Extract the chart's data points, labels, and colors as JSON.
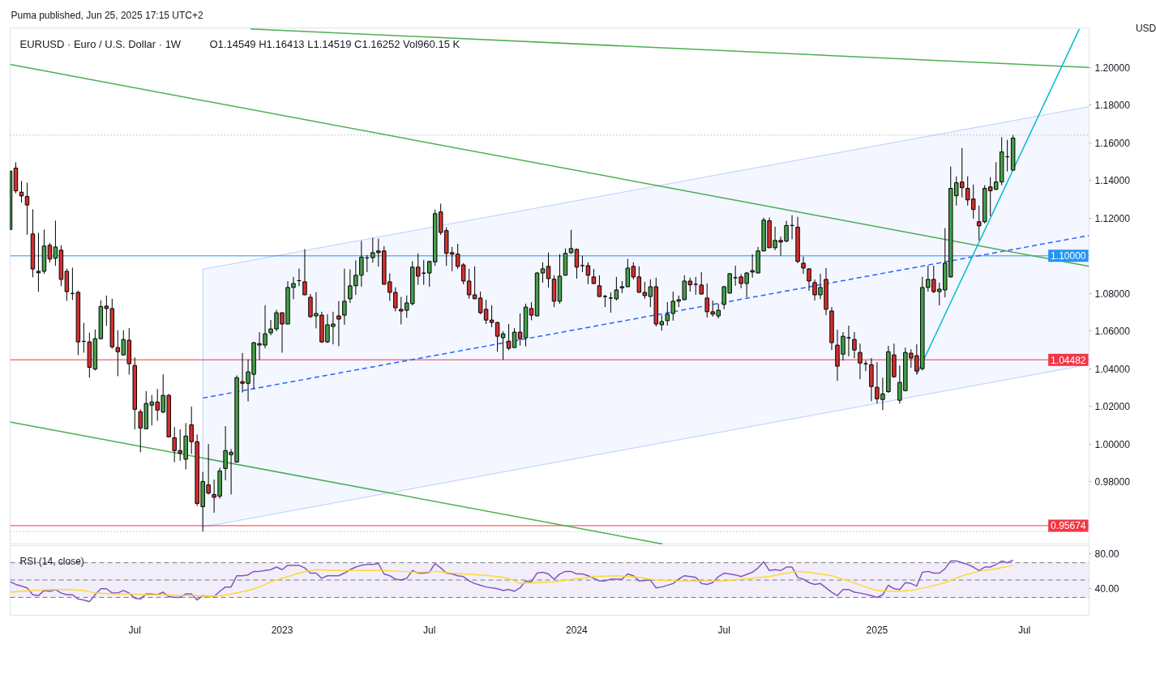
{
  "chart_data": [
    {
      "type": "candlestick",
      "title": "EURUSD · Euro / U.S. Dollar · 1W",
      "subtitle": "O1.14549 H1.16413 L1.14519 C1.16252 Vol960.15 K",
      "ylabel": "USD",
      "annotations": [
        "Puma published, Jun 25, 2025 17:15 UTC+2"
      ],
      "x": [
        "2022-01-31",
        "2022-02-07",
        "2022-02-14",
        "2022-02-21",
        "2022-02-28",
        "2022-03-07",
        "2022-03-14",
        "2022-03-21",
        "2022-03-28",
        "2022-04-04",
        "2022-04-11",
        "2022-04-18",
        "2022-04-25",
        "2022-05-02",
        "2022-05-09",
        "2022-05-16",
        "2022-05-23",
        "2022-05-30",
        "2022-06-06",
        "2022-06-13",
        "2022-06-20",
        "2022-06-27",
        "2022-07-04",
        "2022-07-11",
        "2022-07-18",
        "2022-07-25",
        "2022-08-01",
        "2022-08-08",
        "2022-08-15",
        "2022-08-22",
        "2022-08-29",
        "2022-09-05",
        "2022-09-12",
        "2022-09-19",
        "2022-09-26",
        "2022-10-03",
        "2022-10-10",
        "2022-10-17",
        "2022-10-24",
        "2022-10-31",
        "2022-11-07",
        "2022-11-14",
        "2022-11-21",
        "2022-11-28",
        "2022-12-05",
        "2022-12-12",
        "2022-12-19",
        "2022-12-26",
        "2023-01-02",
        "2023-01-09",
        "2023-01-16",
        "2023-01-23",
        "2023-01-30",
        "2023-02-06",
        "2023-02-13",
        "2023-02-20",
        "2023-02-27",
        "2023-03-06",
        "2023-03-13",
        "2023-03-20",
        "2023-03-27",
        "2023-04-03",
        "2023-04-10",
        "2023-04-17",
        "2023-04-24",
        "2023-05-01",
        "2023-05-08",
        "2023-05-15",
        "2023-05-22",
        "2023-05-29",
        "2023-06-05",
        "2023-06-12",
        "2023-06-19",
        "2023-06-26",
        "2023-07-03",
        "2023-07-10",
        "2023-07-17",
        "2023-07-24",
        "2023-07-31",
        "2023-08-07",
        "2023-08-14",
        "2023-08-21",
        "2023-08-28",
        "2023-09-04",
        "2023-09-11",
        "2023-09-18",
        "2023-09-25",
        "2023-10-02",
        "2023-10-09",
        "2023-10-16",
        "2023-10-23",
        "2023-10-30",
        "2023-11-06",
        "2023-11-13",
        "2023-11-20",
        "2023-11-27",
        "2023-12-04",
        "2023-12-11",
        "2023-12-18",
        "2023-12-25",
        "2024-01-01",
        "2024-01-08",
        "2024-01-15",
        "2024-01-22",
        "2024-01-29",
        "2024-02-05",
        "2024-02-12",
        "2024-02-19",
        "2024-02-26",
        "2024-03-04",
        "2024-03-11",
        "2024-03-18",
        "2024-03-25",
        "2024-04-01",
        "2024-04-08",
        "2024-04-15",
        "2024-04-22",
        "2024-04-29",
        "2024-05-06",
        "2024-05-13",
        "2024-05-20",
        "2024-05-27",
        "2024-06-03",
        "2024-06-10",
        "2024-06-17",
        "2024-06-24",
        "2024-07-01",
        "2024-07-08",
        "2024-07-15",
        "2024-07-22",
        "2024-07-29",
        "2024-08-05",
        "2024-08-12",
        "2024-08-19",
        "2024-08-26",
        "2024-09-02",
        "2024-09-09",
        "2024-09-16",
        "2024-09-23",
        "2024-09-30",
        "2024-10-07",
        "2024-10-14",
        "2024-10-21",
        "2024-10-28",
        "2024-11-04",
        "2024-11-11",
        "2024-11-18",
        "2024-11-25",
        "2024-12-02",
        "2024-12-09",
        "2024-12-16",
        "2024-12-23",
        "2024-12-30",
        "2025-01-06",
        "2025-01-13",
        "2025-01-20",
        "2025-01-27",
        "2025-02-03",
        "2025-02-10",
        "2025-02-17",
        "2025-02-24",
        "2025-03-03",
        "2025-03-10",
        "2025-03-17",
        "2025-03-24",
        "2025-03-31",
        "2025-04-07",
        "2025-04-14",
        "2025-04-21",
        "2025-04-28",
        "2025-05-05",
        "2025-05-12",
        "2025-05-19",
        "2025-05-26",
        "2025-06-02",
        "2025-06-09",
        "2025-06-16",
        "2025-06-23"
      ],
      "ohlc": [
        [
          1.114,
          1.145,
          1.114,
          1.145
        ],
        [
          1.1466,
          1.1497,
          1.1332,
          1.1345
        ],
        [
          1.1338,
          1.1398,
          1.1283,
          1.1318
        ],
        [
          1.1315,
          1.1388,
          1.1112,
          1.127
        ],
        [
          1.1116,
          1.1247,
          1.0886,
          1.093
        ],
        [
          1.0918,
          1.1122,
          1.0809,
          1.091
        ],
        [
          1.0918,
          1.1139,
          1.0904,
          1.1052
        ],
        [
          1.1056,
          1.1069,
          1.0964,
          1.0983
        ],
        [
          1.0987,
          1.1187,
          1.0947,
          1.1047
        ],
        [
          1.103,
          1.1056,
          1.0839,
          1.0875
        ],
        [
          1.0918,
          1.0932,
          1.0761,
          1.081
        ],
        [
          1.08,
          1.0937,
          1.0766,
          1.08
        ],
        [
          1.0806,
          1.0815,
          1.0473,
          1.0543
        ],
        [
          1.0546,
          1.0644,
          1.0486,
          1.0546
        ],
        [
          1.0543,
          1.0592,
          1.0353,
          1.0408
        ],
        [
          1.0399,
          1.0609,
          1.0391,
          1.056
        ],
        [
          1.056,
          1.0764,
          1.0558,
          1.0731
        ],
        [
          1.0733,
          1.0789,
          1.0628,
          1.072
        ],
        [
          1.072,
          1.0772,
          1.0507,
          1.0517
        ],
        [
          1.0513,
          1.0605,
          1.0361,
          1.0491
        ],
        [
          1.0474,
          1.0605,
          1.0472,
          1.0556
        ],
        [
          1.0552,
          1.0616,
          1.0369,
          1.0427
        ],
        [
          1.0418,
          1.0461,
          1.0078,
          1.0185
        ],
        [
          1.0172,
          1.0185,
          0.9957,
          1.0086
        ],
        [
          1.0082,
          1.0282,
          1.008,
          1.0216
        ],
        [
          1.0207,
          1.0261,
          1.0099,
          1.0224
        ],
        [
          1.0224,
          1.0293,
          1.0124,
          1.0181
        ],
        [
          1.0171,
          1.0371,
          1.0164,
          1.0259
        ],
        [
          1.0259,
          1.0267,
          1.0037,
          1.0039
        ],
        [
          1.0034,
          1.0091,
          0.9904,
          0.9966
        ],
        [
          0.9966,
          1.0079,
          0.9912,
          0.9953
        ],
        [
          0.992,
          1.0112,
          0.9866,
          1.0043
        ],
        [
          1.0103,
          1.02,
          0.9948,
          1.0013
        ],
        [
          1.0013,
          1.0052,
          0.9672,
          0.9685
        ],
        [
          0.9668,
          0.9853,
          0.9536,
          0.9802
        ],
        [
          0.9784,
          1.0001,
          0.9733,
          0.974
        ],
        [
          0.9733,
          0.9812,
          0.9636,
          0.9718
        ],
        [
          0.9724,
          0.9875,
          0.9711,
          0.9858
        ],
        [
          0.9871,
          1.0096,
          0.9809,
          0.9966
        ],
        [
          0.9944,
          0.9974,
          0.9733,
          0.9957
        ],
        [
          0.9905,
          1.0365,
          0.9903,
          1.0353
        ],
        [
          1.0332,
          1.0484,
          1.0274,
          1.0323
        ],
        [
          1.0323,
          1.045,
          1.0227,
          1.0384
        ],
        [
          1.0371,
          1.0543,
          1.0293,
          1.0539
        ],
        [
          1.0526,
          1.0595,
          1.0448,
          1.0534
        ],
        [
          1.0526,
          1.0738,
          1.0509,
          1.0586
        ],
        [
          1.0591,
          1.0659,
          1.0578,
          1.0612
        ],
        [
          1.0612,
          1.0713,
          1.0599,
          1.0698
        ],
        [
          1.0698,
          1.07,
          1.0486,
          1.0638
        ],
        [
          1.0638,
          1.0866,
          1.0636,
          1.0832
        ],
        [
          1.0832,
          1.0888,
          1.077,
          1.0853
        ],
        [
          1.0868,
          1.0932,
          1.0839,
          1.0868
        ],
        [
          1.0862,
          1.1036,
          1.0791,
          1.0793
        ],
        [
          1.078,
          1.0797,
          1.0671,
          1.0677
        ],
        [
          1.0681,
          1.0807,
          1.0615,
          1.0694
        ],
        [
          1.0685,
          1.0703,
          1.0537,
          1.0543
        ],
        [
          1.0543,
          1.069,
          1.0537,
          1.0634
        ],
        [
          1.0625,
          1.0703,
          1.053,
          1.0638
        ],
        [
          1.0681,
          1.076,
          1.052,
          1.0664
        ],
        [
          1.0685,
          1.0932,
          1.0634,
          1.0759
        ],
        [
          1.0772,
          1.0928,
          1.075,
          1.0841
        ],
        [
          1.0841,
          1.0976,
          1.0793,
          1.0897
        ],
        [
          1.0897,
          1.1079,
          1.0836,
          1.0993
        ],
        [
          1.0989,
          1.1004,
          1.0914,
          1.0989
        ],
        [
          1.099,
          1.1096,
          1.0964,
          1.1017
        ],
        [
          1.1026,
          1.1091,
          1.0943,
          1.1017
        ],
        [
          1.1026,
          1.1052,
          1.0847,
          1.0849
        ],
        [
          1.0862,
          1.0907,
          1.0761,
          1.0806
        ],
        [
          1.0806,
          1.0833,
          1.0705,
          1.0724
        ],
        [
          1.0716,
          1.0782,
          1.0636,
          1.0707
        ],
        [
          1.0711,
          1.079,
          1.0671,
          1.075
        ],
        [
          1.0746,
          1.0971,
          1.0737,
          1.094
        ],
        [
          1.094,
          1.1013,
          1.0846,
          1.0892
        ],
        [
          1.0908,
          1.0978,
          1.0846,
          1.0908
        ],
        [
          1.0909,
          1.0974,
          1.0836,
          1.097
        ],
        [
          1.0968,
          1.1246,
          1.0947,
          1.1224
        ],
        [
          1.1233,
          1.1277,
          1.1111,
          1.1124
        ],
        [
          1.1134,
          1.1151,
          1.0947,
          1.1013
        ],
        [
          1.1017,
          1.1047,
          1.0918,
          1.1009
        ],
        [
          1.1009,
          1.1064,
          1.0931,
          1.0944
        ],
        [
          1.0952,
          1.0961,
          1.0849,
          1.0866
        ],
        [
          1.0866,
          1.0931,
          1.0772,
          1.0793
        ],
        [
          1.0793,
          1.0944,
          1.077,
          1.0772
        ],
        [
          1.0776,
          1.081,
          1.069,
          1.0698
        ],
        [
          1.0716,
          1.0767,
          1.0638,
          1.0659
        ],
        [
          1.0659,
          1.0738,
          1.0621,
          1.0646
        ],
        [
          1.0646,
          1.0651,
          1.0491,
          1.0573
        ],
        [
          1.0565,
          1.0599,
          1.0448,
          1.0586
        ],
        [
          1.0547,
          1.0638,
          1.0499,
          1.0509
        ],
        [
          1.0513,
          1.0616,
          1.0511,
          1.0595
        ],
        [
          1.0595,
          1.0694,
          1.0523,
          1.056
        ],
        [
          1.0565,
          1.0746,
          1.0519,
          1.0728
        ],
        [
          1.072,
          1.0754,
          1.0658,
          1.0685
        ],
        [
          1.0681,
          1.0914,
          1.0679,
          1.0909
        ],
        [
          1.0909,
          1.0966,
          1.0858,
          1.0931
        ],
        [
          1.0944,
          1.1017,
          1.0832,
          1.0879
        ],
        [
          1.0876,
          1.0897,
          1.0728,
          1.0759
        ],
        [
          1.0759,
          1.1009,
          1.0746,
          1.0892
        ],
        [
          1.0897,
          1.1039,
          1.0895,
          1.1013
        ],
        [
          1.1017,
          1.1138,
          1.1009,
          1.1039
        ],
        [
          1.1034,
          1.1039,
          1.0879,
          1.094
        ],
        [
          1.0948,
          1.1,
          1.0914,
          1.0948
        ],
        [
          1.0948,
          1.0966,
          1.0849,
          1.0897
        ],
        [
          1.0888,
          1.0931,
          1.0849,
          1.0853
        ],
        [
          1.0841,
          1.0897,
          1.0782,
          1.0784
        ],
        [
          1.0784,
          1.0793,
          1.0728,
          1.0784
        ],
        [
          1.0776,
          1.0806,
          1.0698,
          1.0776
        ],
        [
          1.0772,
          1.0888,
          1.0763,
          1.0819
        ],
        [
          1.083,
          1.0866,
          1.0802,
          1.0836
        ],
        [
          1.0836,
          1.0984,
          1.0834,
          1.0935
        ],
        [
          1.0944,
          1.0966,
          1.0875,
          1.0888
        ],
        [
          1.0888,
          1.0944,
          1.0804,
          1.0806
        ],
        [
          1.0806,
          1.0862,
          1.0772,
          1.0789
        ],
        [
          1.0784,
          1.0875,
          1.0728,
          1.0836
        ],
        [
          1.0836,
          1.0884,
          1.0625,
          1.0638
        ],
        [
          1.0634,
          1.0685,
          1.0603,
          1.0651
        ],
        [
          1.0656,
          1.0754,
          1.063,
          1.069
        ],
        [
          1.0694,
          1.081,
          1.0656,
          1.0759
        ],
        [
          1.0759,
          1.0789,
          1.0728,
          1.0767
        ],
        [
          1.0767,
          1.0897,
          1.0765,
          1.0866
        ],
        [
          1.0866,
          1.0884,
          1.081,
          1.0846
        ],
        [
          1.0849,
          1.0888,
          1.0793,
          1.0849
        ],
        [
          1.0845,
          1.0914,
          1.0795,
          1.0797
        ],
        [
          1.0776,
          1.0853,
          1.0672,
          1.0703
        ],
        [
          1.0703,
          1.0763,
          1.0677,
          1.069
        ],
        [
          1.0681,
          1.0746,
          1.0668,
          1.0711
        ],
        [
          1.0742,
          1.0841,
          1.0716,
          1.0836
        ],
        [
          1.0802,
          1.0909,
          1.08,
          1.0905
        ],
        [
          1.0884,
          1.0948,
          1.0841,
          1.0884
        ],
        [
          1.0888,
          1.0902,
          1.0828,
          1.0853
        ],
        [
          1.0853,
          1.0914,
          1.078,
          1.0909
        ],
        [
          1.0922,
          1.1009,
          1.0884,
          1.0914
        ],
        [
          1.0909,
          1.1047,
          1.0907,
          1.1026
        ],
        [
          1.1026,
          1.1203,
          1.1024,
          1.119
        ],
        [
          1.1186,
          1.1203,
          1.1041,
          1.1043
        ],
        [
          1.1043,
          1.1155,
          1.103,
          1.1082
        ],
        [
          1.1082,
          1.1103,
          1.1,
          1.1073
        ],
        [
          1.1078,
          1.1186,
          1.1073,
          1.1161
        ],
        [
          1.1161,
          1.1216,
          1.1088,
          1.1161
        ],
        [
          1.1152,
          1.1207,
          1.0961,
          1.097
        ],
        [
          1.0961,
          1.0996,
          1.0905,
          1.0935
        ],
        [
          1.0931,
          1.0935,
          1.0815,
          1.0866
        ],
        [
          1.0858,
          1.0875,
          1.0763,
          1.0793
        ],
        [
          1.0793,
          1.0905,
          1.077,
          1.0832
        ],
        [
          1.0875,
          1.0935,
          1.0685,
          1.0716
        ],
        [
          1.0707,
          1.0728,
          1.05,
          1.0539
        ],
        [
          1.0526,
          1.0608,
          1.0336,
          1.0414
        ],
        [
          1.0478,
          1.0595,
          1.0444,
          1.0573
        ],
        [
          1.0565,
          1.0629,
          1.0466,
          1.0565
        ],
        [
          1.0556,
          1.0595,
          1.0457,
          1.05
        ],
        [
          1.0487,
          1.0534,
          1.0345,
          1.0431
        ],
        [
          1.0427,
          1.0444,
          1.0388,
          1.0427
        ],
        [
          1.0422,
          1.0457,
          1.0228,
          1.0306
        ],
        [
          1.0302,
          1.0435,
          1.0216,
          1.0241
        ],
        [
          1.0237,
          1.0353,
          1.0181,
          1.0267
        ],
        [
          1.0279,
          1.0522,
          1.0272,
          1.0491
        ],
        [
          1.0474,
          1.0534,
          1.0353,
          1.0358
        ],
        [
          1.0233,
          1.0418,
          1.0216,
          1.0328
        ],
        [
          1.0284,
          1.0513,
          1.0282,
          1.0487
        ],
        [
          1.0483,
          1.0504,
          1.0405,
          1.0457
        ],
        [
          1.047,
          1.053,
          1.0371,
          1.0388
        ],
        [
          1.0401,
          1.0888,
          1.0392,
          1.0832
        ],
        [
          1.0832,
          1.0948,
          1.081,
          1.0875
        ],
        [
          1.0875,
          1.0948,
          1.0802,
          1.081
        ],
        [
          1.081,
          1.0858,
          1.0737,
          1.0823
        ],
        [
          1.0819,
          1.1147,
          1.078,
          1.0961
        ],
        [
          1.0888,
          1.1474,
          1.0884,
          1.1358
        ],
        [
          1.1319,
          1.1422,
          1.1267,
          1.1388
        ],
        [
          1.1392,
          1.1573,
          1.131,
          1.1362
        ],
        [
          1.1358,
          1.1422,
          1.1267,
          1.1297
        ],
        [
          1.1302,
          1.1379,
          1.1198,
          1.1246
        ],
        [
          1.1181,
          1.1267,
          1.1082,
          1.1159
        ],
        [
          1.1181,
          1.1375,
          1.1172,
          1.1358
        ],
        [
          1.1366,
          1.1418,
          1.1211,
          1.1345
        ],
        [
          1.1353,
          1.1497,
          1.1349,
          1.1392
        ],
        [
          1.1392,
          1.1629,
          1.1375,
          1.1552
        ],
        [
          1.1526,
          1.1616,
          1.1448,
          1.1526
        ],
        [
          1.14549,
          1.16413,
          1.14519,
          1.16252
        ]
      ],
      "color": "#000000",
      "colors": [
        "#43a047",
        "#d32f2f",
        "#d32f2f",
        "#d32f2f",
        "#d32f2f",
        "#d32f2f",
        "#43a047",
        "#d32f2f",
        "#43a047",
        "#d32f2f",
        "#d32f2f",
        "#000000",
        "#d32f2f",
        "#000000",
        "#d32f2f",
        "#43a047",
        "#43a047",
        "#d32f2f",
        "#d32f2f",
        "#d32f2f",
        "#43a047",
        "#d32f2f",
        "#d32f2f",
        "#d32f2f",
        "#43a047",
        "#43a047",
        "#d32f2f",
        "#43a047",
        "#d32f2f",
        "#d32f2f",
        "#d32f2f",
        "#43a047",
        "#d32f2f",
        "#d32f2f",
        "#43a047",
        "#d32f2f",
        "#d32f2f",
        "#43a047",
        "#43a047",
        "#43a047",
        "#43a047",
        "#d32f2f",
        "#43a047",
        "#43a047",
        "#43a047",
        "#43a047",
        "#43a047",
        "#43a047",
        "#d32f2f",
        "#43a047",
        "#43a047",
        "#000000",
        "#d32f2f",
        "#d32f2f",
        "#43a047",
        "#d32f2f",
        "#43a047",
        "#43a047",
        "#d32f2f",
        "#43a047",
        "#43a047",
        "#43a047",
        "#43a047",
        "#000000",
        "#43a047",
        "#d32f2f",
        "#d32f2f",
        "#d32f2f",
        "#d32f2f",
        "#d32f2f",
        "#43a047",
        "#43a047",
        "#d32f2f",
        "#000000",
        "#43a047",
        "#43a047",
        "#d32f2f",
        "#d32f2f",
        "#d32f2f",
        "#d32f2f",
        "#d32f2f",
        "#d32f2f",
        "#d32f2f",
        "#d32f2f",
        "#d32f2f",
        "#d32f2f",
        "#d32f2f",
        "#43a047",
        "#d32f2f",
        "#43a047",
        "#d32f2f",
        "#43a047",
        "#d32f2f",
        "#43a047",
        "#43a047",
        "#d32f2f",
        "#d32f2f",
        "#43a047",
        "#43a047",
        "#43a047",
        "#d32f2f",
        "#000000",
        "#d32f2f",
        "#d32f2f",
        "#d32f2f",
        "#000000",
        "#000000",
        "#43a047",
        "#43a047",
        "#43a047",
        "#d32f2f",
        "#d32f2f",
        "#d32f2f",
        "#43a047",
        "#d32f2f",
        "#43a047",
        "#43a047",
        "#43a047",
        "#43a047",
        "#43a047",
        "#d32f2f",
        "#000000",
        "#d32f2f",
        "#d32f2f",
        "#d32f2f",
        "#43a047",
        "#43a047",
        "#43a047",
        "#000000",
        "#d32f2f",
        "#43a047",
        "#d32f2f",
        "#43a047",
        "#43a047",
        "#d32f2f",
        "#43a047",
        "#d32f2f",
        "#43a047",
        "#000000",
        "#d32f2f",
        "#d32f2f",
        "#d32f2f",
        "#d32f2f",
        "#43a047",
        "#d32f2f",
        "#d32f2f",
        "#d32f2f",
        "#43a047",
        "#000000",
        "#d32f2f",
        "#d32f2f",
        "#000000",
        "#d32f2f",
        "#d32f2f",
        "#43a047",
        "#43a047",
        "#d32f2f",
        "#43a047",
        "#43a047",
        "#d32f2f",
        "#d32f2f",
        "#43a047",
        "#43a047",
        "#d32f2f",
        "#43a047",
        "#43a047",
        "#43a047",
        "#43a047",
        "#d32f2f",
        "#d32f2f",
        "#d32f2f",
        "#d32f2f",
        "#43a047",
        "#d32f2f",
        "#43a047",
        "#43a047",
        "#000000",
        "#43a047"
      ],
      "series": [
        {
          "type": "line",
          "color": "#4caf50",
          "x": [
            "2022-11-24",
            "2025-09-25"
          ],
          "values": [
            1.2205,
            1.2
          ]
        },
        {
          "type": "line",
          "color": "#4caf50",
          "x": [
            "2022-01-31",
            "2025-09-25"
          ],
          "values": [
            1.2016,
            1.0944
          ]
        },
        {
          "type": "line",
          "color": "#4caf50",
          "x": [
            "2022-01-31",
            "2024-04-16"
          ],
          "values": [
            1.0118,
            0.947
          ]
        },
        {
          "type": "line",
          "color": "#2962ff",
          "line_style": "dashed",
          "x": [
            "2022-09-26",
            "2025-09-25"
          ],
          "values": [
            1.0245,
            1.1108
          ],
          "lower": [
            0.956,
            1.0423
          ],
          "upper": [
            1.0929,
            1.1792
          ]
        },
        {
          "type": "line",
          "color": "#00bcd4",
          "x": [
            "2025-02-24",
            "2025-09-13"
          ],
          "values": [
            1.0369,
            1.2205
          ]
        }
      ],
      "ref_lines": [
        {
          "axis": "y",
          "value": 1.1,
          "label": "1.10000",
          "color": "#2196f3"
        },
        {
          "axis": "y",
          "value": 1.04482,
          "label": "1.04482",
          "color": "#f23645"
        },
        {
          "axis": "y",
          "value": 0.95674,
          "label": "0.95674",
          "color": "#f23645"
        },
        {
          "axis": "y",
          "value": 1.16413,
          "color": "#9598a1",
          "line_style": "dotted"
        },
        {
          "axis": "y",
          "value": 0.9536,
          "color": "#9598a1",
          "line_style": "dotted"
        }
      ],
      "xlim": [
        "2022-01-31",
        "2025-09-25"
      ],
      "ylim": [
        0.9466,
        1.221
      ],
      "yticks": [
        {
          "value": 0.98,
          "label": "0.98000"
        },
        {
          "value": 1.0,
          "label": "1.00000"
        },
        {
          "value": 1.02,
          "label": "1.02000"
        },
        {
          "value": 1.04,
          "label": "1.04000"
        },
        {
          "value": 1.06,
          "label": "1.06000"
        },
        {
          "value": 1.08,
          "label": "1.08000"
        },
        {
          "value": 1.12,
          "label": "1.12000"
        },
        {
          "value": 1.14,
          "label": "1.14000"
        },
        {
          "value": 1.16,
          "label": "1.16000"
        },
        {
          "value": 1.18,
          "label": "1.18000"
        },
        {
          "value": 1.2,
          "label": "1.20000"
        }
      ],
      "tick_labels": "y",
      "grid": false
    },
    {
      "type": "line",
      "title": "RSI (14, close)",
      "series": [
        {
          "color": "#7e57c2",
          "x": [
            "2022-01-31",
            "2022-02-07",
            "2022-02-14",
            "2022-02-21",
            "2022-02-28",
            "2022-03-07",
            "2022-03-14",
            "2022-03-21",
            "2022-03-28",
            "2022-04-04",
            "2022-04-11",
            "2022-04-18",
            "2022-04-25",
            "2022-05-02",
            "2022-05-09",
            "2022-05-16",
            "2022-05-23",
            "2022-05-30",
            "2022-06-06",
            "2022-06-13",
            "2022-06-20",
            "2022-06-27",
            "2022-07-04",
            "2022-07-11",
            "2022-07-18",
            "2022-07-25",
            "2022-08-01",
            "2022-08-08",
            "2022-08-15",
            "2022-08-22",
            "2022-08-29",
            "2022-09-05",
            "2022-09-12",
            "2022-09-19",
            "2022-09-26",
            "2022-10-03",
            "2022-10-10",
            "2022-10-17",
            "2022-10-24",
            "2022-10-31",
            "2022-11-07",
            "2022-11-14",
            "2022-11-21",
            "2022-11-28",
            "2022-12-05",
            "2022-12-12",
            "2022-12-19",
            "2022-12-26",
            "2023-01-02",
            "2023-01-09",
            "2023-01-16",
            "2023-01-23",
            "2023-01-30",
            "2023-02-06",
            "2023-02-13",
            "2023-02-20",
            "2023-02-27",
            "2023-03-06",
            "2023-03-13",
            "2023-03-20",
            "2023-03-27",
            "2023-04-03",
            "2023-04-10",
            "2023-04-17",
            "2023-04-24",
            "2023-05-01",
            "2023-05-08",
            "2023-05-15",
            "2023-05-22",
            "2023-05-29",
            "2023-06-05",
            "2023-06-12",
            "2023-06-19",
            "2023-06-26",
            "2023-07-03",
            "2023-07-10",
            "2023-07-17",
            "2023-07-24",
            "2023-07-31",
            "2023-08-07",
            "2023-08-14",
            "2023-08-21",
            "2023-08-28",
            "2023-09-04",
            "2023-09-11",
            "2023-09-25",
            "2023-10-02",
            "2023-10-09",
            "2023-10-16",
            "2023-10-23",
            "2023-10-30",
            "2023-11-06",
            "2023-11-13",
            "2023-11-20",
            "2023-11-27",
            "2023-12-04",
            "2023-12-11",
            "2023-12-18",
            "2023-12-25",
            "2024-01-01",
            "2024-01-08",
            "2024-01-15",
            "2024-01-29",
            "2024-02-05",
            "2024-02-12",
            "2024-02-26",
            "2024-03-04",
            "2024-03-11",
            "2024-03-18",
            "2024-04-01",
            "2024-04-08",
            "2024-04-15",
            "2024-04-29",
            "2024-05-06",
            "2024-05-13",
            "2024-05-20",
            "2024-05-27",
            "2024-06-03",
            "2024-06-10",
            "2024-06-17",
            "2024-06-24",
            "2024-07-01",
            "2024-07-15",
            "2024-07-22",
            "2024-08-05",
            "2024-08-12",
            "2024-08-19",
            "2024-08-26",
            "2024-09-02",
            "2024-09-09",
            "2024-09-16",
            "2024-09-23",
            "2024-09-30",
            "2024-10-07",
            "2024-10-14",
            "2024-10-21",
            "2024-10-28",
            "2024-11-04",
            "2024-11-11",
            "2024-11-18",
            "2024-11-25",
            "2024-12-02",
            "2024-12-09",
            "2024-12-16",
            "2024-12-30",
            "2025-01-06",
            "2025-01-13",
            "2025-01-20",
            "2025-01-27",
            "2025-02-03",
            "2025-02-10",
            "2025-02-17",
            "2025-02-24",
            "2025-03-03",
            "2025-03-10",
            "2025-03-17",
            "2025-03-24",
            "2025-03-31",
            "2025-04-07",
            "2025-04-14",
            "2025-04-28",
            "2025-05-05",
            "2025-05-12",
            "2025-05-19",
            "2025-05-26",
            "2025-06-02",
            "2025-06-09",
            "2025-06-16",
            "2025-06-23"
          ],
          "values": [
            48,
            45,
            43,
            41,
            33,
            32,
            38,
            37,
            39,
            35,
            33,
            33,
            28,
            27,
            25,
            33,
            40,
            40,
            35,
            35,
            38,
            35,
            29,
            28,
            34,
            34,
            33,
            36,
            31,
            30,
            30,
            34,
            34,
            27,
            32,
            31,
            31,
            37,
            42,
            42,
            55,
            55,
            56,
            60,
            60,
            61,
            62,
            65,
            62,
            67,
            67,
            67,
            64,
            58,
            58,
            52,
            55,
            55,
            55,
            58,
            62,
            65,
            67,
            68,
            68,
            69,
            57,
            55,
            51,
            50,
            52,
            61,
            58,
            58,
            59,
            69,
            64,
            58,
            57,
            55,
            54,
            49,
            46,
            44,
            42,
            40,
            38,
            39,
            37,
            41,
            49,
            48,
            58,
            59,
            57,
            51,
            57,
            60,
            60,
            57,
            57,
            55,
            49,
            49,
            51,
            51,
            57,
            55,
            49,
            50,
            41,
            42,
            46,
            51,
            55,
            54,
            53,
            46,
            45,
            47,
            54,
            58,
            56,
            54,
            59,
            64,
            71,
            61,
            62,
            61,
            65,
            65,
            53,
            51,
            47,
            45,
            46,
            41,
            36,
            32,
            39,
            39,
            36,
            35,
            32,
            30,
            33,
            44,
            40,
            39,
            47,
            46,
            43,
            59,
            60,
            58,
            58,
            63,
            72,
            72,
            68,
            65,
            61,
            65,
            65,
            68,
            72,
            70,
            73
          ]
        },
        {
          "color": "#fdd835",
          "x": [
            "2022-01-31",
            "2022-02-28",
            "2022-03-21",
            "2022-04-11",
            "2022-05-02",
            "2022-05-16",
            "2022-06-06",
            "2022-06-27",
            "2022-07-18",
            "2022-08-08",
            "2022-08-29",
            "2022-09-19",
            "2022-10-03",
            "2022-10-17",
            "2022-10-31",
            "2022-11-21",
            "2022-12-05",
            "2022-12-19",
            "2023-01-09",
            "2023-01-23",
            "2023-02-06",
            "2023-02-13",
            "2023-03-06",
            "2023-03-27",
            "2023-04-17",
            "2023-05-08",
            "2023-05-29",
            "2023-06-19",
            "2023-07-10",
            "2023-07-31",
            "2023-08-14",
            "2023-09-04",
            "2023-09-25",
            "2023-10-09",
            "2023-10-23",
            "2023-11-13",
            "2023-12-04",
            "2024-01-22",
            "2024-02-19",
            "2024-03-18",
            "2024-04-08",
            "2024-05-06",
            "2024-06-03",
            "2024-07-01",
            "2024-07-22",
            "2024-08-26",
            "2024-09-16",
            "2024-09-30",
            "2024-10-14",
            "2024-11-11",
            "2024-12-02",
            "2024-12-23",
            "2025-01-06",
            "2025-01-27",
            "2025-02-17",
            "2025-03-10",
            "2025-03-31",
            "2025-04-21",
            "2025-05-12",
            "2025-06-02",
            "2025-06-23"
          ],
          "values": [
            36,
            38,
            39,
            39,
            38,
            35,
            34,
            34,
            33,
            33,
            32,
            32,
            31,
            32,
            34,
            38,
            42,
            48,
            54,
            58,
            61,
            62,
            61,
            61,
            61,
            61,
            60,
            59,
            60,
            58,
            57,
            56,
            54,
            52,
            46,
            47,
            48,
            54,
            55,
            53,
            50,
            49,
            49,
            49,
            51,
            54,
            58,
            60,
            59,
            55,
            49,
            42,
            38,
            37,
            38,
            42,
            47,
            55,
            60,
            63,
            67
          ]
        }
      ],
      "ref_lines": [
        {
          "axis": "y",
          "value": 70,
          "color": "#787b86",
          "line_style": "dashed"
        },
        {
          "axis": "y",
          "value": 50,
          "color": "#787b86",
          "line_style": "dashed"
        },
        {
          "axis": "y",
          "value": 30,
          "color": "#787b86",
          "line_style": "dashed"
        }
      ],
      "bands": [
        {
          "axis": "y",
          "from": 30,
          "to": 70,
          "color": "#7e57c2"
        }
      ],
      "xlim": [
        "2022-01-31",
        "2025-09-25"
      ],
      "xticks": [
        {
          "value": "2022-07-04",
          "label": "Jul"
        },
        {
          "value": "2023-01-02",
          "label": "2023"
        },
        {
          "value": "2023-07-03",
          "label": "Jul"
        },
        {
          "value": "2024-01-01",
          "label": "2024"
        },
        {
          "value": "2024-07-01",
          "label": "Jul"
        },
        {
          "value": "2025-01-06",
          "label": "2025"
        },
        {
          "value": "2025-07-07",
          "label": "Jul"
        }
      ],
      "ylim": [
        9.4,
        89.8
      ],
      "yticks": [
        {
          "value": 40,
          "label": "40.00"
        },
        {
          "value": 80,
          "label": "80.00"
        }
      ],
      "grid": false
    }
  ]
}
